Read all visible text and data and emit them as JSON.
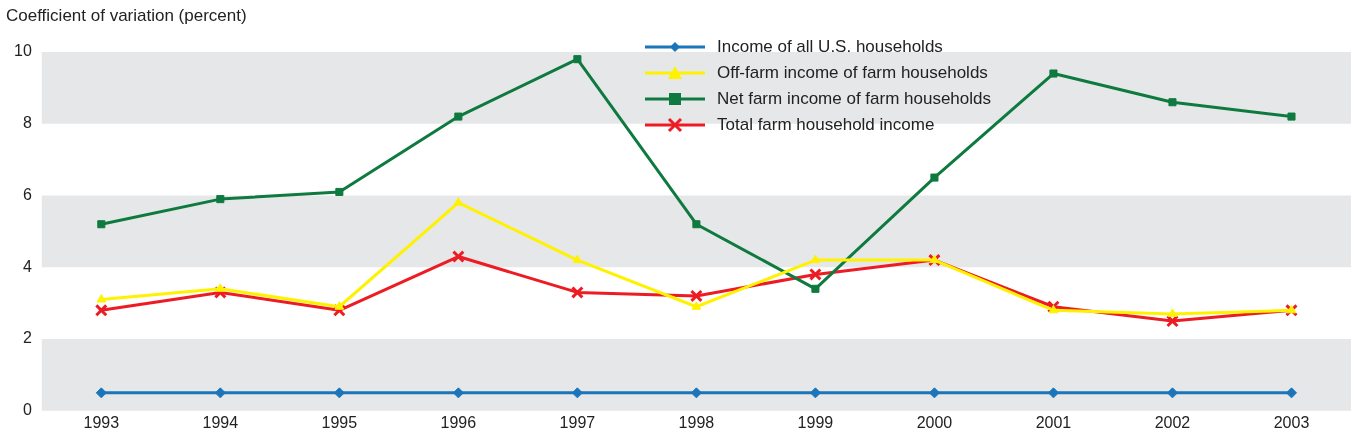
{
  "chart_data": {
    "type": "line",
    "ylabel": "Coefficient of variation (percent)",
    "categories": [
      "1993",
      "1994",
      "1995",
      "1996",
      "1997",
      "1998",
      "1999",
      "2000",
      "2001",
      "2002",
      "2003"
    ],
    "ylim": [
      0,
      10
    ],
    "yticks": [
      0,
      2,
      4,
      6,
      8,
      10
    ],
    "grid": false,
    "legend": "top",
    "bands": [
      {
        "axis": "y",
        "from": 0,
        "to": 2,
        "color": "#e6e7e8"
      },
      {
        "axis": "y",
        "from": 4,
        "to": 6,
        "color": "#e6e7e8"
      },
      {
        "axis": "y",
        "from": 8,
        "to": 10,
        "color": "#e6e7e8"
      }
    ],
    "series": [
      {
        "name": "Income of all U.S. households",
        "color": "#1a75bb",
        "marker": "diamond",
        "values": [
          0.5,
          0.5,
          0.5,
          0.5,
          0.5,
          0.5,
          0.5,
          0.5,
          0.5,
          0.5,
          0.5
        ]
      },
      {
        "name": "Off-farm income of farm households",
        "color": "#fff200",
        "marker": "triangle",
        "values": [
          3.1,
          3.4,
          2.9,
          5.8,
          4.2,
          2.9,
          4.2,
          4.2,
          2.8,
          2.7,
          2.8
        ]
      },
      {
        "name": "Net farm income of farm households",
        "color": "#0f7a3f",
        "marker": "square",
        "values": [
          5.2,
          5.9,
          6.1,
          8.2,
          9.8,
          5.2,
          3.4,
          6.5,
          9.4,
          8.6,
          8.2
        ]
      },
      {
        "name": "Total farm household income",
        "color": "#ed1c24",
        "marker": "cross",
        "values": [
          2.8,
          3.3,
          2.8,
          4.3,
          3.3,
          3.2,
          3.8,
          4.2,
          2.9,
          2.5,
          2.8
        ]
      }
    ]
  }
}
